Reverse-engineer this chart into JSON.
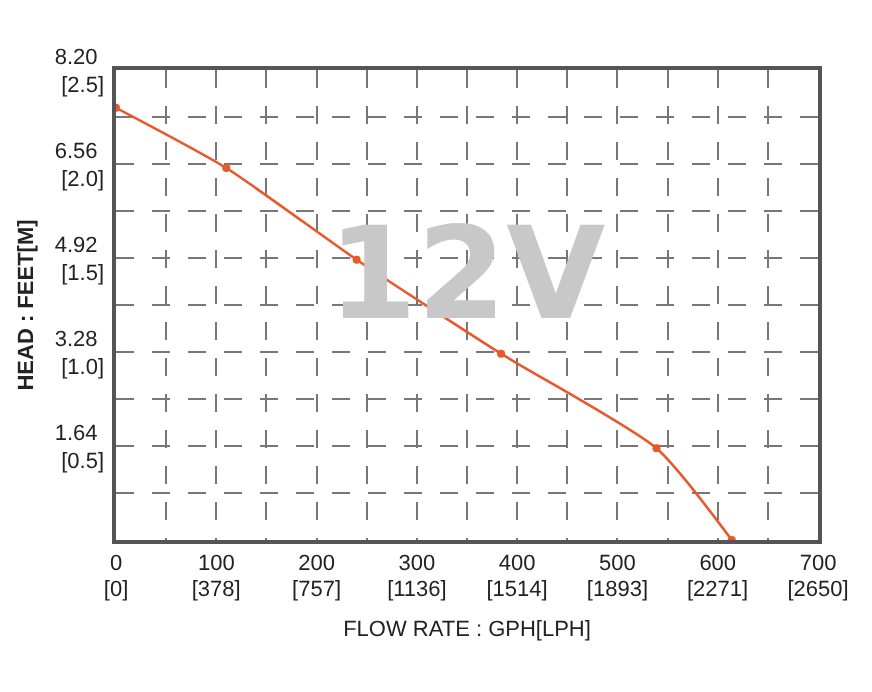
{
  "chart_data": {
    "type": "line",
    "xlabel": "FLOW RATE : GPH[LPH]",
    "ylabel": "HEAD : FEET[M]",
    "annotations": [
      "12V"
    ],
    "x": [
      0,
      110,
      240,
      384,
      539,
      614
    ],
    "series": [
      {
        "color": "#e8582a",
        "values": [
          7.54,
          6.49,
          4.89,
          3.25,
          1.6,
          0
        ]
      }
    ],
    "marker": "circle",
    "line_style": "solid",
    "grid": true,
    "xlim": [
      0,
      700
    ],
    "ylim": [
      0,
      8.2
    ],
    "xticks": [
      0,
      {
        "value": 50,
        "label": null
      },
      100,
      {
        "value": 150,
        "label": null
      },
      200,
      {
        "value": 250,
        "label": null
      },
      300,
      {
        "value": 350,
        "label": null
      },
      400,
      {
        "value": 450,
        "label": null
      },
      500,
      {
        "value": 550,
        "label": null
      },
      600,
      {
        "value": 650,
        "label": null
      },
      700
    ],
    "yticks": [
      {
        "value": 0.82,
        "label": null
      },
      1.64,
      {
        "value": 2.46,
        "label": null
      },
      3.28,
      {
        "value": 4.1,
        "label": null
      },
      4.92,
      {
        "value": 5.74,
        "label": null
      },
      6.56,
      {
        "value": 7.38,
        "label": null
      },
      {
        "value": 8.2,
        "label": "8.20"
      }
    ],
    "x2lim": [
      0,
      2650
    ],
    "x2ticks": [
      {
        "value": 0,
        "label": "[0]"
      },
      {
        "value": 378,
        "label": "[378]"
      },
      {
        "value": 757,
        "label": "[757]"
      },
      {
        "value": 1136,
        "label": "[1136]"
      },
      {
        "value": 1514,
        "label": "[1514]"
      },
      {
        "value": 1893,
        "label": "[1893]"
      },
      {
        "value": 2271,
        "label": "[2271]"
      },
      {
        "value": 2650,
        "label": "[2650]"
      }
    ],
    "y2lim": [
      0,
      2.5
    ],
    "y2ticks": [
      {
        "value": 0.5,
        "label": "[0.5]"
      },
      {
        "value": 1.0,
        "label": "[1.0]"
      },
      {
        "value": 1.5,
        "label": "[1.5]"
      },
      {
        "value": 2.0,
        "label": "[2.0]"
      },
      {
        "value": 2.5,
        "label": "[2.5]"
      }
    ]
  }
}
